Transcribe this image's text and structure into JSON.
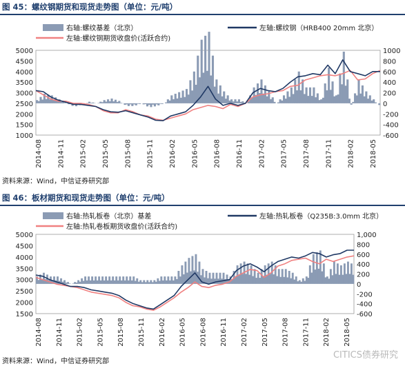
{
  "fig45": {
    "title": "图 45：螺纹钢期货和现货走势图（单位：元/吨）",
    "source": "资料来源：Wind，中信证券研究部"
  },
  "fig46": {
    "title": "图 46：板材期货和现货走势图（单位：元/吨）",
    "source": "资料来源：Wind，中信证券研究部"
  },
  "watermark": "CITICS债券研究",
  "colors": {
    "basis": "#8b9bb4",
    "spot": "#1f3864",
    "futures": "#f08080"
  },
  "chart_data": [
    {
      "type": "line",
      "x_labels": [
        "2014-08",
        "2014-11",
        "2015-02",
        "2015-05",
        "2015-08",
        "2015-11",
        "2016-02",
        "2016-05",
        "2016-08",
        "2016-11",
        "2017-02",
        "2017-05",
        "2017-08",
        "2017-11",
        "2018-02",
        "2018-05"
      ],
      "ylim_left": [
        1000,
        5000
      ],
      "yticks_left": [
        1000,
        1500,
        2000,
        2500,
        3000,
        3500,
        4000,
        4500,
        5000
      ],
      "ylim_right": [
        -600,
        1000
      ],
      "yticks_right": [
        -600,
        -400,
        -200,
        0,
        200,
        400,
        600,
        800,
        1000
      ],
      "legend": {
        "basis": "右轴:螺纹基差（北京）",
        "spot": "左轴:螺纹钢（HRB400 20mm 北京）",
        "futures": "左轴:螺纹钢期货收盘价(活跃合约)"
      },
      "series": [
        {
          "name": "左轴:螺纹钢（HRB400 20mm 北京）",
          "axis": "left",
          "x": [
            0,
            1,
            2,
            3,
            4,
            5,
            6,
            7,
            8,
            9,
            10,
            11,
            12,
            13,
            14,
            15,
            16,
            17,
            18,
            19,
            20,
            21,
            22,
            23,
            24,
            25,
            26,
            27,
            28,
            29,
            30,
            31,
            32,
            33,
            34,
            35,
            36,
            37,
            38,
            39,
            40,
            41,
            42,
            43,
            44,
            45,
            46
          ],
          "values": [
            3100,
            3050,
            2800,
            2650,
            2550,
            2450,
            2450,
            2400,
            2350,
            2200,
            2100,
            2080,
            2150,
            2050,
            1950,
            1850,
            1700,
            1680,
            1900,
            2000,
            2100,
            2400,
            2800,
            3300,
            2700,
            2400,
            2500,
            2400,
            2500,
            3000,
            3200,
            3100,
            3050,
            3200,
            3500,
            3750,
            3800,
            3900,
            3850,
            4300,
            3900,
            4550,
            4000,
            3900,
            3800,
            4000,
            4000
          ]
        },
        {
          "name": "左轴:螺纹钢期货收盘价(活跃合约)",
          "axis": "left",
          "x": [
            0,
            1,
            2,
            3,
            4,
            5,
            6,
            7,
            8,
            9,
            10,
            11,
            12,
            13,
            14,
            15,
            16,
            17,
            18,
            19,
            20,
            21,
            22,
            23,
            24,
            25,
            26,
            27,
            28,
            29,
            30,
            31,
            32,
            33,
            34,
            35,
            36,
            37,
            38,
            39,
            40,
            41,
            42,
            43,
            44,
            45,
            46
          ],
          "values": [
            3100,
            2900,
            2700,
            2600,
            2600,
            2500,
            2500,
            2450,
            2350,
            2150,
            2050,
            2050,
            2200,
            2100,
            1950,
            1900,
            1750,
            1700,
            1800,
            1900,
            2000,
            2200,
            2300,
            2400,
            2350,
            2250,
            2450,
            2350,
            2500,
            2800,
            2900,
            2950,
            3050,
            3100,
            3300,
            3350,
            3600,
            3700,
            3800,
            3850,
            3800,
            3900,
            4050,
            3600,
            3650,
            3900,
            4050
          ]
        },
        {
          "name": "右轴:螺纹基差（北京）",
          "axis": "right",
          "type": "area",
          "x": [
            0,
            1,
            2,
            3,
            4,
            5,
            6,
            7,
            8,
            9,
            10,
            11,
            12,
            13,
            14,
            15,
            16,
            17,
            18,
            19,
            20,
            21,
            22,
            23,
            24,
            25,
            26,
            27,
            28,
            29,
            30,
            31,
            32,
            33,
            34,
            35,
            36,
            37,
            38,
            39,
            40,
            41,
            42,
            43,
            44,
            45,
            46
          ],
          "values": [
            40,
            120,
            100,
            50,
            0,
            -50,
            -20,
            20,
            0,
            40,
            60,
            30,
            -40,
            -40,
            0,
            -60,
            -40,
            0,
            100,
            140,
            180,
            400,
            800,
            900,
            300,
            150,
            50,
            50,
            0,
            200,
            300,
            150,
            0,
            100,
            200,
            400,
            200,
            200,
            50,
            450,
            100,
            650,
            -50,
            300,
            150,
            50,
            -50
          ]
        }
      ]
    },
    {
      "type": "line",
      "x_labels": [
        "2014-08",
        "2014-11",
        "2015-02",
        "2015-05",
        "2015-08",
        "2015-11",
        "2016-02",
        "2016-05",
        "2016-08",
        "2016-11",
        "2017-02",
        "2017-05",
        "2017-08",
        "2017-11",
        "2018-02",
        "2018-05"
      ],
      "ylim_left": [
        1500,
        5000
      ],
      "yticks_left": [
        1500,
        2000,
        2500,
        3000,
        3500,
        4000,
        4500,
        5000
      ],
      "ylim_right": [
        -600,
        1000
      ],
      "yticks_right": [
        -600,
        -400,
        -200,
        0,
        200,
        400,
        600,
        800,
        "1,000"
      ],
      "legend": {
        "basis": "右轴:热轧板卷（北京）基差",
        "spot": "左轴:热轧板卷（Q235B:3.0mm 北京）",
        "futures": "左轴:热轧卷板期货收盘价(活跃合约)"
      },
      "series": [
        {
          "name": "左轴:热轧板卷（Q235B:3.0mm 北京）",
          "axis": "left",
          "x": [
            0,
            1,
            2,
            3,
            4,
            5,
            6,
            7,
            8,
            9,
            10,
            11,
            12,
            13,
            14,
            15,
            16,
            17,
            18,
            19,
            20,
            21,
            22,
            23,
            24,
            25,
            26,
            27,
            28,
            29,
            30,
            31,
            32,
            33,
            34,
            35,
            36,
            37,
            38,
            39,
            40,
            41,
            42,
            43,
            44,
            45,
            46
          ],
          "values": [
            3200,
            3150,
            3000,
            2900,
            2800,
            2700,
            2700,
            2650,
            2550,
            2500,
            2450,
            2400,
            2300,
            2100,
            1950,
            1850,
            1750,
            1700,
            1900,
            2100,
            2300,
            2700,
            3000,
            3300,
            2900,
            2800,
            2900,
            2950,
            3000,
            3400,
            3600,
            3700,
            3550,
            3350,
            3600,
            3800,
            3900,
            4000,
            3950,
            4050,
            4200,
            4150,
            4000,
            4100,
            4150,
            4300,
            4300
          ]
        },
        {
          "name": "左轴:热轧卷板期货收盘价(活跃合约)",
          "axis": "left",
          "x": [
            0,
            1,
            2,
            3,
            4,
            5,
            6,
            7,
            8,
            9,
            10,
            11,
            12,
            13,
            14,
            15,
            16,
            17,
            18,
            19,
            20,
            21,
            22,
            23,
            24,
            25,
            26,
            27,
            28,
            29,
            30,
            31,
            32,
            33,
            34,
            35,
            36,
            37,
            38,
            39,
            40,
            41,
            42,
            43,
            44,
            45,
            46
          ],
          "values": [
            3100,
            3000,
            2900,
            2800,
            2750,
            2700,
            2650,
            2550,
            2450,
            2400,
            2350,
            2300,
            2200,
            2000,
            1850,
            1800,
            1700,
            1650,
            1800,
            2000,
            2200,
            2450,
            2650,
            2900,
            2700,
            2650,
            2750,
            2800,
            2900,
            3150,
            3300,
            3450,
            3400,
            3100,
            3300,
            3600,
            3700,
            3850,
            3900,
            3950,
            3800,
            3700,
            3900,
            3800,
            3900,
            4000,
            4050
          ]
        },
        {
          "name": "右轴:热轧板卷（北京）基差",
          "axis": "right",
          "type": "area",
          "x": [
            0,
            1,
            2,
            3,
            4,
            5,
            6,
            7,
            8,
            9,
            10,
            11,
            12,
            13,
            14,
            15,
            16,
            17,
            18,
            19,
            20,
            21,
            22,
            23,
            24,
            25,
            26,
            27,
            28,
            29,
            30,
            31,
            32,
            33,
            34,
            35,
            36,
            37,
            38,
            39,
            40,
            41,
            42,
            43,
            44,
            45,
            46
          ],
          "values": [
            100,
            150,
            100,
            100,
            50,
            0,
            50,
            100,
            100,
            100,
            100,
            100,
            100,
            100,
            100,
            50,
            50,
            50,
            100,
            100,
            100,
            250,
            350,
            400,
            200,
            150,
            150,
            150,
            100,
            250,
            300,
            250,
            150,
            250,
            300,
            200,
            200,
            150,
            50,
            100,
            400,
            450,
            100,
            300,
            250,
            300,
            250
          ]
        }
      ]
    }
  ]
}
